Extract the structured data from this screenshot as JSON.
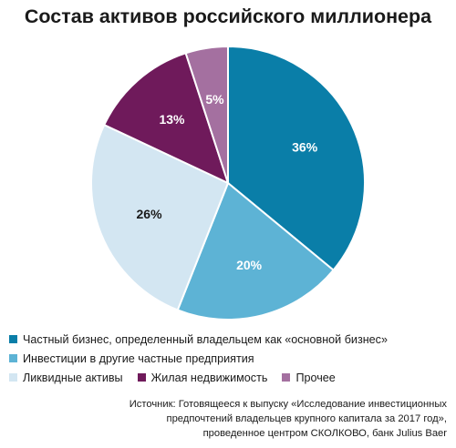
{
  "title": "Состав активов российского миллионера",
  "chart_data": {
    "type": "pie",
    "title": "Состав активов российского миллионера",
    "slices": [
      {
        "name": "Частный бизнес, определенный владельцем как «основной бизнес»",
        "value": 36,
        "label": "36%",
        "color": "#0a7ea8",
        "label_color": "#ffffff"
      },
      {
        "name": "Инвестиции в другие частные предприятия",
        "value": 20,
        "label": "20%",
        "color": "#5db3d5",
        "label_color": "#ffffff"
      },
      {
        "name": "Ликвидные активы",
        "value": 26,
        "label": "26%",
        "color": "#d3e6f2",
        "label_color": "#1a1a1a"
      },
      {
        "name": "Жилая недвижимость",
        "value": 13,
        "label": "13%",
        "color": "#6f1a5b",
        "label_color": "#ffffff"
      },
      {
        "name": "Прочее",
        "value": 5,
        "label": "5%",
        "color": "#a470a0",
        "label_color": "#ffffff"
      }
    ],
    "start": "12 o'clock",
    "direction": "clockwise",
    "legend_placement": "bottom"
  },
  "source_lines": [
    "Источник: Готовящееся к выпуску «Исследование инвестиционных",
    "предпочтений владельцев крупного капитала за 2017 год»,",
    "проведенное центром СКОЛКОВО, банк Julius Baer"
  ]
}
